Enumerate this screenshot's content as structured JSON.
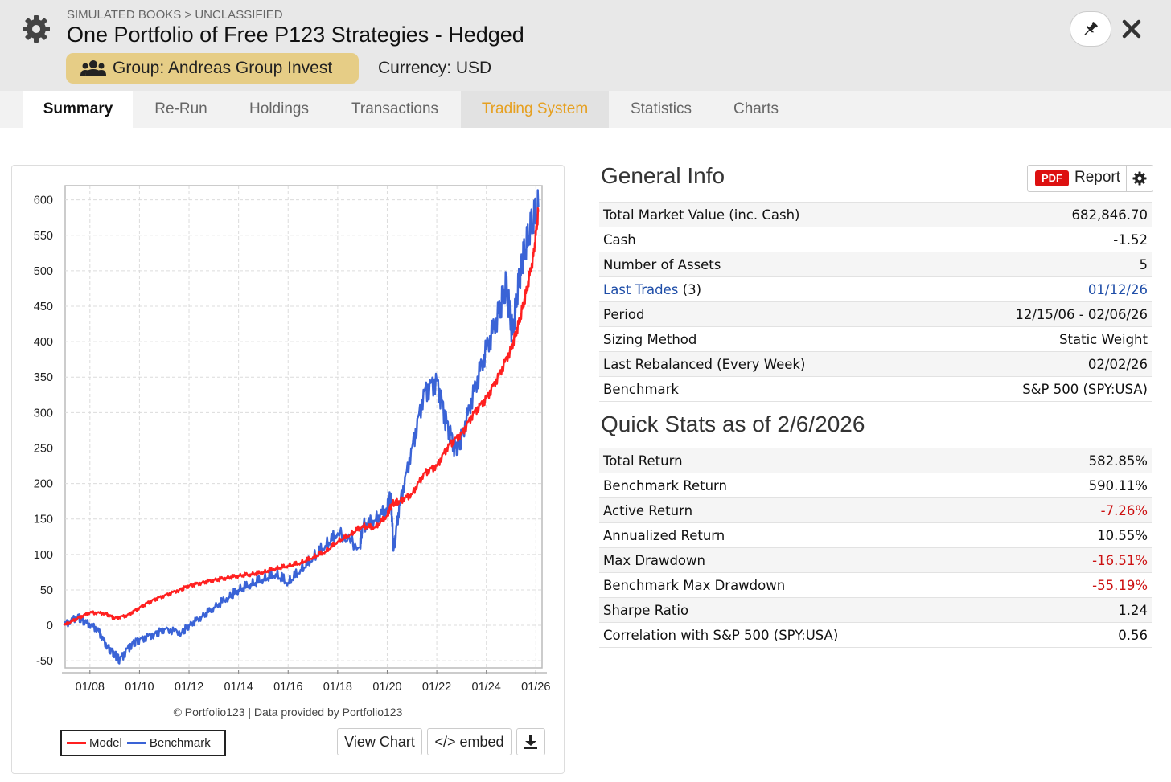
{
  "header": {
    "breadcrumb": "SIMULATED BOOKS > UNCLASSIFIED",
    "title": "One Portfolio of Free P123 Strategies - Hedged",
    "group_label": "Group: Andreas Group Invest",
    "currency_label": "Currency: USD"
  },
  "tabs": [
    "Summary",
    "Re-Run",
    "Holdings",
    "Transactions",
    "Trading System",
    "Statistics",
    "Charts"
  ],
  "chart": {
    "copyright": "© Portfolio123 | Data provided by Portfolio123",
    "legend": [
      {
        "label": "Model",
        "color": "#ff2020"
      },
      {
        "label": "Benchmark",
        "color": "#3a63d6"
      }
    ],
    "view_chart_label": "View Chart",
    "embed_label": "</> embed"
  },
  "chart_data": {
    "type": "line",
    "yticks": [
      600,
      550,
      500,
      450,
      400,
      350,
      300,
      250,
      200,
      150,
      100,
      50,
      0,
      -50
    ],
    "xticks": [
      "01/08",
      "01/10",
      "01/12",
      "01/14",
      "01/16",
      "01/18",
      "01/20",
      "01/22",
      "01/24",
      "01/26"
    ],
    "ylim": [
      -60,
      620
    ],
    "grid": true,
    "legend_position": "bottom-left",
    "series": [
      {
        "name": "Model",
        "color": "#ff2020",
        "x": [
          2006.96,
          2007.5,
          2008.0,
          2008.6,
          2009.0,
          2009.5,
          2010.0,
          2010.5,
          2011.0,
          2011.6,
          2012.0,
          2012.5,
          2013.0,
          2013.5,
          2014.0,
          2014.5,
          2015.0,
          2015.5,
          2016.0,
          2016.5,
          2017.0,
          2017.5,
          2018.0,
          2018.5,
          2019.0,
          2019.5,
          2020.0,
          2020.2,
          2020.5,
          2021.0,
          2021.5,
          2022.0,
          2022.5,
          2023.0,
          2023.5,
          2024.0,
          2024.5,
          2025.0,
          2025.3,
          2025.6,
          2025.9,
          2026.1
        ],
        "y": [
          0,
          10,
          18,
          17,
          10,
          14,
          25,
          35,
          42,
          50,
          56,
          60,
          64,
          67,
          70,
          72,
          75,
          80,
          84,
          88,
          96,
          104,
          118,
          128,
          140,
          138,
          155,
          172,
          175,
          185,
          215,
          225,
          255,
          270,
          300,
          320,
          352,
          390,
          425,
          468,
          520,
          583
        ]
      },
      {
        "name": "Benchmark",
        "color": "#3a63d6",
        "x": [
          2006.96,
          2007.5,
          2007.8,
          2008.3,
          2008.7,
          2009.0,
          2009.2,
          2009.7,
          2010.0,
          2010.6,
          2011.0,
          2011.7,
          2012.0,
          2012.5,
          2013.0,
          2013.6,
          2014.0,
          2014.5,
          2015.0,
          2015.5,
          2016.0,
          2016.5,
          2017.0,
          2017.5,
          2018.0,
          2018.9,
          2019.0,
          2019.5,
          2020.0,
          2020.15,
          2020.25,
          2020.5,
          2021.0,
          2021.5,
          2022.0,
          2022.4,
          2022.75,
          2023.0,
          2023.5,
          2024.0,
          2024.5,
          2024.8,
          2025.05,
          2025.3,
          2025.5,
          2025.8,
          2026.1
        ],
        "y": [
          0,
          12,
          5,
          -5,
          -30,
          -40,
          -48,
          -25,
          -20,
          -12,
          -5,
          -10,
          0,
          12,
          25,
          40,
          50,
          58,
          65,
          72,
          60,
          78,
          95,
          112,
          130,
          110,
          140,
          148,
          165,
          185,
          105,
          170,
          250,
          330,
          345,
          285,
          250,
          265,
          330,
          390,
          440,
          480,
          410,
          480,
          520,
          560,
          590
        ]
      }
    ]
  },
  "general_info": {
    "title": "General Info",
    "pdf_badge": "PDF",
    "pdf_label": "Report",
    "rows": [
      {
        "label": "Total Market Value (inc. Cash)",
        "value": "682,846.70"
      },
      {
        "label": "Cash",
        "value": "-1.52"
      },
      {
        "label": "Number of Assets",
        "value": "5"
      },
      {
        "label": "Last Trades",
        "label_suffix": " (3)",
        "value": "01/12/26"
      },
      {
        "label": "Period",
        "value": "12/15/06 - 02/06/26"
      },
      {
        "label": "Sizing Method",
        "value": "Static Weight"
      },
      {
        "label": "Last Rebalanced (Every Week)",
        "value": "02/02/26"
      },
      {
        "label": "Benchmark",
        "value": "S&P 500 (SPY:USA)"
      }
    ]
  },
  "quick_stats": {
    "title": "Quick Stats as of 2/6/2026",
    "negative_color": "#cc1111",
    "rows": [
      {
        "label": "Total Return",
        "value": "582.85%"
      },
      {
        "label": "Benchmark Return",
        "value": "590.11%"
      },
      {
        "label": "Active Return",
        "value": "-7.26%"
      },
      {
        "label": "Annualized Return",
        "value": "10.55%"
      },
      {
        "label": "Max Drawdown",
        "value": "-16.51%"
      },
      {
        "label": "Benchmark Max Drawdown",
        "value": "-55.19%"
      },
      {
        "label": "Sharpe Ratio",
        "value": "1.24"
      },
      {
        "label": "Correlation with S&P 500 (SPY:USA)",
        "value": "0.56"
      }
    ]
  }
}
